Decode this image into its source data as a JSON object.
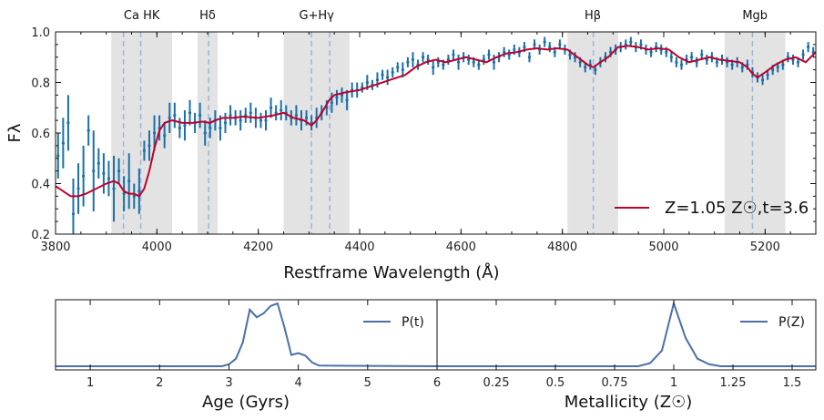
{
  "colors": {
    "model": "#c0002a",
    "obs": "#1a6fa8",
    "band": "#e3e3e3",
    "dash": "#9fb4d6",
    "pdf": "#4c6fa9"
  },
  "chart_data": [
    {
      "type": "line",
      "xlabel": "Restframe Wavelength (Å)",
      "ylabel": "Fλ",
      "xlim": [
        3800,
        5300
      ],
      "ylim": [
        0.2,
        1.0
      ],
      "xticks": [
        3800,
        4000,
        4200,
        4400,
        4600,
        4800,
        5000,
        5200
      ],
      "yticks": [
        0.2,
        0.4,
        0.6,
        0.8,
        1.0
      ],
      "ytick_labels": [
        "0.2",
        "0.4",
        "0.6",
        "0.8",
        "1.0"
      ],
      "bands": [
        {
          "label": "Ca HK",
          "x0": 3910,
          "x1": 4030,
          "lines": [
            3934,
            3968
          ]
        },
        {
          "label": "Hδ",
          "x0": 4080,
          "x1": 4120,
          "lines": [
            4102
          ]
        },
        {
          "label": "G+Hγ",
          "x0": 4250,
          "x1": 4380,
          "lines": [
            4305,
            4341
          ]
        },
        {
          "label": "Hβ",
          "x0": 4810,
          "x1": 4910,
          "lines": [
            4861
          ]
        },
        {
          "label": "Mgb",
          "x0": 5120,
          "x1": 5240,
          "lines": [
            5175
          ]
        }
      ],
      "legend": "Z=1.05 Z☉,t=3.6",
      "legend_position": "lower-right",
      "model": {
        "x": [
          3800,
          3815,
          3830,
          3845,
          3860,
          3880,
          3900,
          3915,
          3925,
          3935,
          3945,
          3955,
          3965,
          3975,
          3985,
          3995,
          4005,
          4015,
          4030,
          4050,
          4070,
          4090,
          4105,
          4115,
          4130,
          4150,
          4170,
          4200,
          4230,
          4250,
          4270,
          4290,
          4305,
          4315,
          4325,
          4340,
          4350,
          4370,
          4385,
          4400,
          4430,
          4460,
          4490,
          4510,
          4530,
          4550,
          4570,
          4590,
          4610,
          4630,
          4650,
          4670,
          4690,
          4710,
          4730,
          4750,
          4770,
          4790,
          4810,
          4830,
          4850,
          4861,
          4875,
          4890,
          4910,
          4930,
          4950,
          4970,
          4990,
          5010,
          5030,
          5050,
          5070,
          5090,
          5110,
          5130,
          5150,
          5165,
          5175,
          5185,
          5200,
          5220,
          5240,
          5260,
          5280,
          5300
        ],
        "y": [
          0.39,
          0.37,
          0.35,
          0.35,
          0.36,
          0.38,
          0.4,
          0.41,
          0.4,
          0.37,
          0.36,
          0.36,
          0.35,
          0.38,
          0.45,
          0.54,
          0.61,
          0.64,
          0.65,
          0.64,
          0.64,
          0.645,
          0.64,
          0.65,
          0.66,
          0.66,
          0.665,
          0.66,
          0.67,
          0.68,
          0.66,
          0.65,
          0.63,
          0.65,
          0.68,
          0.73,
          0.75,
          0.76,
          0.765,
          0.77,
          0.79,
          0.81,
          0.83,
          0.86,
          0.88,
          0.89,
          0.88,
          0.89,
          0.9,
          0.89,
          0.88,
          0.9,
          0.915,
          0.92,
          0.93,
          0.935,
          0.93,
          0.935,
          0.93,
          0.9,
          0.87,
          0.86,
          0.88,
          0.9,
          0.94,
          0.945,
          0.94,
          0.93,
          0.935,
          0.93,
          0.9,
          0.88,
          0.89,
          0.9,
          0.89,
          0.885,
          0.88,
          0.86,
          0.835,
          0.82,
          0.84,
          0.87,
          0.89,
          0.9,
          0.88,
          0.92
        ]
      },
      "observed": {
        "x": [
          3805,
          3815,
          3825,
          3835,
          3845,
          3855,
          3865,
          3875,
          3885,
          3895,
          3905,
          3915,
          3925,
          3935,
          3945,
          3955,
          3965,
          3975,
          3985,
          3995,
          4005,
          4015,
          4025,
          4035,
          4045,
          4055,
          4065,
          4075,
          4085,
          4095,
          4105,
          4115,
          4125,
          4135,
          4145,
          4155,
          4165,
          4175,
          4185,
          4195,
          4205,
          4215,
          4225,
          4235,
          4245,
          4255,
          4265,
          4275,
          4285,
          4295,
          4305,
          4315,
          4325,
          4335,
          4345,
          4355,
          4365,
          4375,
          4385,
          4395,
          4405,
          4415,
          4425,
          4435,
          4445,
          4455,
          4465,
          4475,
          4485,
          4495,
          4505,
          4515,
          4525,
          4535,
          4545,
          4555,
          4565,
          4575,
          4585,
          4595,
          4605,
          4615,
          4625,
          4635,
          4645,
          4655,
          4665,
          4675,
          4685,
          4695,
          4705,
          4715,
          4725,
          4735,
          4745,
          4755,
          4765,
          4775,
          4785,
          4795,
          4805,
          4815,
          4825,
          4835,
          4845,
          4855,
          4865,
          4875,
          4885,
          4895,
          4905,
          4915,
          4925,
          4935,
          4945,
          4955,
          4965,
          4975,
          4985,
          4995,
          5005,
          5015,
          5025,
          5035,
          5045,
          5055,
          5065,
          5075,
          5085,
          5095,
          5105,
          5115,
          5125,
          5135,
          5145,
          5155,
          5165,
          5175,
          5185,
          5195,
          5205,
          5215,
          5225,
          5235,
          5245,
          5255,
          5265,
          5275,
          5285,
          5295
        ],
        "y": [
          0.51,
          0.56,
          0.64,
          0.28,
          0.38,
          0.43,
          0.61,
          0.45,
          0.48,
          0.44,
          0.42,
          0.38,
          0.45,
          0.36,
          0.41,
          0.35,
          0.37,
          0.53,
          0.55,
          0.6,
          0.62,
          0.59,
          0.66,
          0.67,
          0.62,
          0.63,
          0.68,
          0.64,
          0.67,
          0.6,
          0.62,
          0.65,
          0.62,
          0.64,
          0.67,
          0.66,
          0.65,
          0.67,
          0.68,
          0.66,
          0.65,
          0.65,
          0.7,
          0.68,
          0.69,
          0.68,
          0.66,
          0.67,
          0.65,
          0.66,
          0.64,
          0.66,
          0.68,
          0.7,
          0.72,
          0.74,
          0.75,
          0.73,
          0.77,
          0.77,
          0.78,
          0.8,
          0.79,
          0.81,
          0.83,
          0.82,
          0.84,
          0.86,
          0.85,
          0.88,
          0.89,
          0.87,
          0.9,
          0.89,
          0.86,
          0.88,
          0.87,
          0.89,
          0.91,
          0.88,
          0.9,
          0.89,
          0.88,
          0.87,
          0.89,
          0.91,
          0.88,
          0.9,
          0.92,
          0.91,
          0.93,
          0.92,
          0.94,
          0.9,
          0.95,
          0.93,
          0.96,
          0.94,
          0.92,
          0.95,
          0.93,
          0.91,
          0.9,
          0.88,
          0.86,
          0.87,
          0.85,
          0.88,
          0.9,
          0.92,
          0.93,
          0.94,
          0.95,
          0.96,
          0.94,
          0.95,
          0.93,
          0.92,
          0.94,
          0.93,
          0.92,
          0.9,
          0.88,
          0.87,
          0.89,
          0.9,
          0.88,
          0.91,
          0.89,
          0.9,
          0.88,
          0.89,
          0.88,
          0.87,
          0.88,
          0.86,
          0.87,
          0.84,
          0.82,
          0.81,
          0.83,
          0.85,
          0.86,
          0.87,
          0.9,
          0.89,
          0.88,
          0.91,
          0.94,
          0.92
        ],
        "err": [
          0.09,
          0.1,
          0.11,
          0.14,
          0.1,
          0.12,
          0.06,
          0.16,
          0.06,
          0.08,
          0.07,
          0.13,
          0.05,
          0.07,
          0.11,
          0.05,
          0.09,
          0.04,
          0.06,
          0.07,
          0.05,
          0.05,
          0.06,
          0.05,
          0.04,
          0.06,
          0.05,
          0.04,
          0.05,
          0.05,
          0.04,
          0.04,
          0.05,
          0.04,
          0.04,
          0.03,
          0.04,
          0.03,
          0.04,
          0.04,
          0.03,
          0.04,
          0.04,
          0.03,
          0.04,
          0.03,
          0.03,
          0.04,
          0.04,
          0.03,
          0.03,
          0.04,
          0.03,
          0.03,
          0.04,
          0.03,
          0.03,
          0.04,
          0.03,
          0.03,
          0.02,
          0.03,
          0.02,
          0.03,
          0.02,
          0.03,
          0.02,
          0.02,
          0.03,
          0.02,
          0.03,
          0.02,
          0.02,
          0.02,
          0.03,
          0.02,
          0.02,
          0.02,
          0.02,
          0.03,
          0.02,
          0.02,
          0.02,
          0.02,
          0.02,
          0.02,
          0.03,
          0.02,
          0.02,
          0.02,
          0.02,
          0.02,
          0.02,
          0.02,
          0.02,
          0.02,
          0.02,
          0.02,
          0.02,
          0.02,
          0.02,
          0.02,
          0.02,
          0.02,
          0.02,
          0.02,
          0.02,
          0.02,
          0.02,
          0.02,
          0.02,
          0.02,
          0.02,
          0.02,
          0.02,
          0.02,
          0.02,
          0.02,
          0.02,
          0.02,
          0.02,
          0.02,
          0.02,
          0.02,
          0.02,
          0.02,
          0.02,
          0.02,
          0.02,
          0.02,
          0.02,
          0.02,
          0.02,
          0.02,
          0.02,
          0.02,
          0.02,
          0.02,
          0.02,
          0.02,
          0.02,
          0.02,
          0.02,
          0.02,
          0.02,
          0.02,
          0.02,
          0.02,
          0.02,
          0.02
        ]
      }
    },
    {
      "type": "line",
      "xlabel": "Age (Gyrs)",
      "xlim": [
        0.5,
        6.0
      ],
      "xticks": [
        1,
        2,
        3,
        4,
        5,
        6
      ],
      "legend": "P(t)",
      "legend_position": "upper-right",
      "series": [
        {
          "name": "P(t)",
          "x": [
            0.5,
            2.9,
            3.0,
            3.1,
            3.2,
            3.3,
            3.4,
            3.5,
            3.6,
            3.7,
            3.8,
            3.9,
            4.0,
            4.1,
            4.2,
            4.3,
            6.0
          ],
          "y": [
            0.0,
            0.0,
            0.03,
            0.12,
            0.38,
            0.9,
            0.78,
            0.84,
            0.96,
            1.0,
            0.62,
            0.18,
            0.21,
            0.17,
            0.06,
            0.01,
            0.0
          ]
        }
      ]
    },
    {
      "type": "line",
      "xlabel": "Metallicity (Z☉)",
      "xlim": [
        0.0,
        1.6
      ],
      "xticks": [
        0.25,
        0.5,
        0.75,
        1.0,
        1.25,
        1.5
      ],
      "legend": "P(Z)",
      "legend_position": "upper-right",
      "series": [
        {
          "name": "P(Z)",
          "x": [
            0.0,
            0.85,
            0.9,
            0.95,
            1.0,
            1.05,
            1.1,
            1.15,
            1.2,
            1.6
          ],
          "y": [
            0.0,
            0.0,
            0.05,
            0.25,
            1.0,
            0.45,
            0.12,
            0.03,
            0.0,
            0.0
          ]
        }
      ]
    }
  ]
}
